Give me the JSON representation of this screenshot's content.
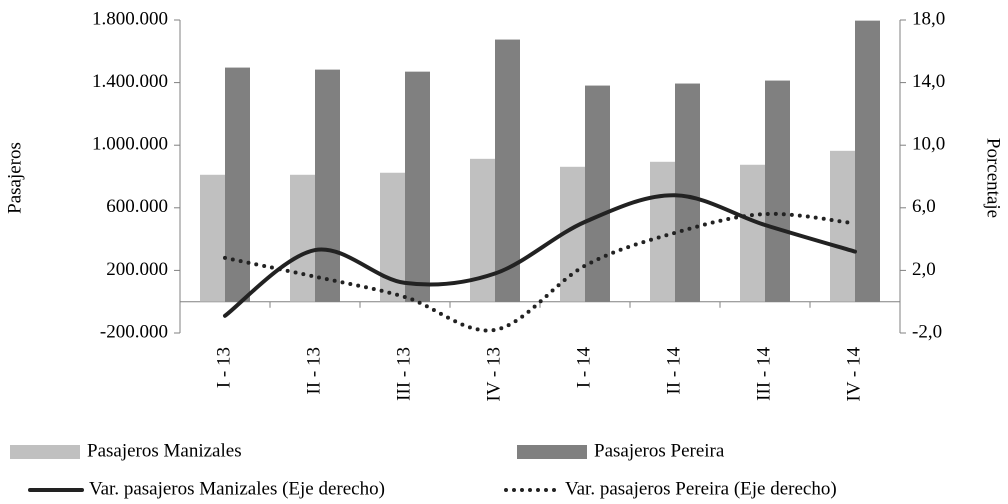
{
  "chart_data": {
    "type": "bar-line",
    "y_label": "Pasajeros",
    "y2_label": "Porcentaje",
    "categories": [
      "I - 13",
      "II - 13",
      "III - 13",
      "IV - 13",
      "I - 14",
      "II - 14",
      "III - 14",
      "IV - 14"
    ],
    "ylim": [
      -200000,
      1800000
    ],
    "yticks": [
      {
        "value": -200000,
        "label": "-200.000"
      },
      {
        "value": 200000,
        "label": "200.000"
      },
      {
        "value": 600000,
        "label": "600.000"
      },
      {
        "value": 1000000,
        "label": "1.000.000"
      },
      {
        "value": 1400000,
        "label": "1.400.000"
      },
      {
        "value": 1800000,
        "label": "1.800.000"
      }
    ],
    "y2lim": [
      -2,
      18
    ],
    "y2ticks": [
      {
        "value": -2,
        "label": "-2,0"
      },
      {
        "value": 2,
        "label": "2,0"
      },
      {
        "value": 6,
        "label": "6,0"
      },
      {
        "value": 10,
        "label": "10,0"
      },
      {
        "value": 14,
        "label": "14,0"
      },
      {
        "value": 18,
        "label": "18,0"
      }
    ],
    "series": [
      {
        "name": "Pasajeros Manizales",
        "kind": "bar",
        "color": "#c0c0c0",
        "values": [
          811000,
          811000,
          824000,
          913000,
          862000,
          894000,
          875000,
          964000
        ]
      },
      {
        "name": "Pasajeros Pereira",
        "kind": "bar",
        "color": "#808080",
        "values": [
          1496000,
          1483000,
          1470000,
          1675000,
          1381000,
          1394000,
          1413000,
          1796000
        ]
      },
      {
        "name": "Var. pasajeros Manizales (Eje derecho)",
        "kind": "line",
        "axis": "y2",
        "color": "#222222",
        "style": "solid",
        "values": [
          -0.9,
          3.3,
          1.2,
          1.8,
          5.1,
          6.8,
          4.9,
          3.2
        ]
      },
      {
        "name": "Var. pasajeros Pereira (Eje derecho)",
        "kind": "line",
        "axis": "y2",
        "color": "#222222",
        "style": "dotted",
        "values": [
          2.8,
          1.6,
          0.3,
          -1.8,
          2.3,
          4.4,
          5.6,
          5.0
        ]
      }
    ]
  }
}
